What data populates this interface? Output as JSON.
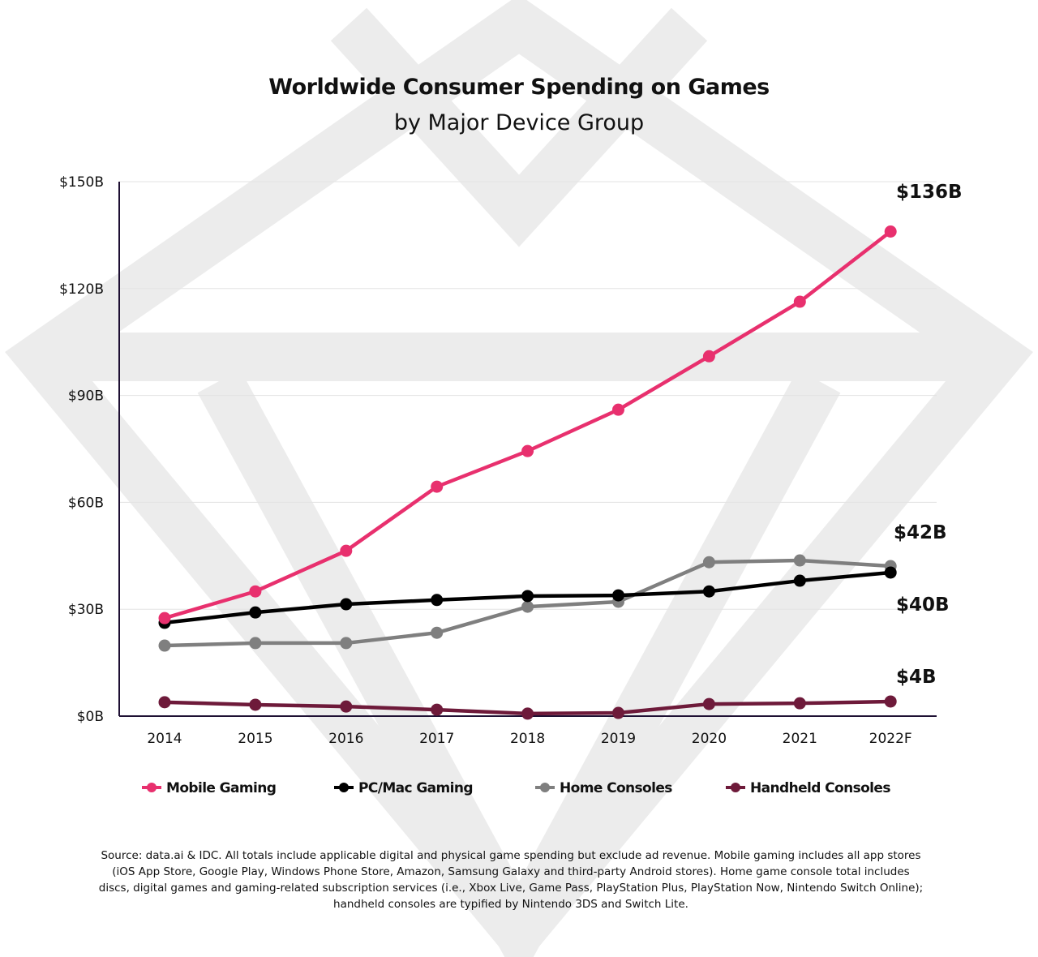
{
  "chart_data": {
    "type": "line",
    "title": "Worldwide Consumer Spending on Games",
    "subtitle": "by Major Device Group",
    "xlabel": "",
    "ylabel": "",
    "categories": [
      "2014",
      "2015",
      "2016",
      "2017",
      "2018",
      "2019",
      "2020",
      "2021",
      "2022F"
    ],
    "ylim": [
      0,
      150
    ],
    "y_ticks": [
      0,
      30,
      60,
      90,
      120,
      150
    ],
    "y_tick_labels": [
      "$0B",
      "$30B",
      "$60B",
      "$90B",
      "$120B",
      "$150B"
    ],
    "grid": true,
    "legend_position": "bottom",
    "series": [
      {
        "name": "Mobile Gaming",
        "color": "#e8306e",
        "values": [
          27.5,
          35,
          46.4,
          64.4,
          74.4,
          86,
          101,
          116.3,
          136
        ],
        "end_label": "$136B"
      },
      {
        "name": "PC/Mac Gaming",
        "color": "#000000",
        "values": [
          26.2,
          29.1,
          31.4,
          32.6,
          33.7,
          33.9,
          35,
          38,
          40.3
        ],
        "end_label": "$40B"
      },
      {
        "name": "Home Consoles",
        "color": "#7f7f7f",
        "values": [
          19.8,
          20.5,
          20.5,
          23.4,
          30.7,
          32.1,
          43.2,
          43.7,
          42.1
        ],
        "end_label": "$42B"
      },
      {
        "name": "Handheld Consoles",
        "color": "#6e1a3a",
        "values": [
          3.9,
          3.2,
          2.7,
          1.8,
          0.7,
          0.9,
          3.4,
          3.6,
          4.1
        ],
        "end_label": "$4B"
      }
    ],
    "source": "Source: data.ai & IDC. All totals include applicable digital and physical game spending but exclude ad revenue. Mobile gaming includes all app stores (iOS App Store, Google Play, Windows Phone Store, Amazon, Samsung Galaxy and third-party Android stores). Home game console total includes discs, digital games and gaming-related subscription services (i.e., Xbox Live, Game Pass, PlayStation Plus, PlayStation Now, Nintendo Switch Online); handheld consoles are typified by Nintendo 3DS and Switch Lite."
  }
}
